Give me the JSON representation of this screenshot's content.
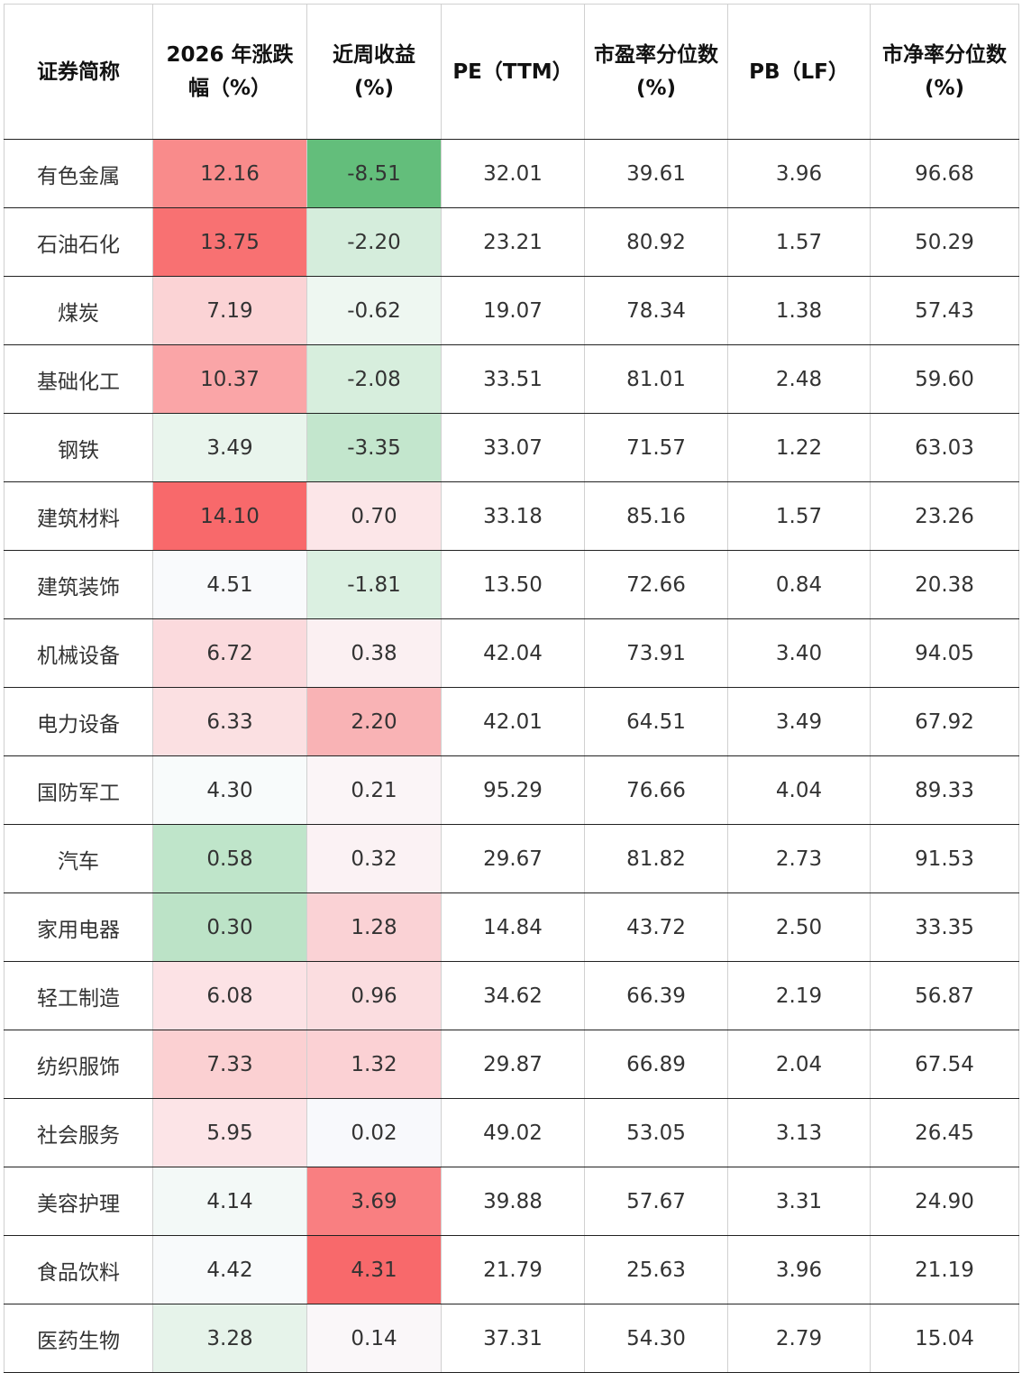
{
  "headers": {
    "name": "证券简称",
    "ytd_line1": "2026 年涨跌",
    "ytd_line2": "幅（%）",
    "week_line1": "近周收益",
    "week_line2": "(%)",
    "pe": "PE（TTM）",
    "pe_pct_line1": "市盈率分位数",
    "pe_pct_line2": "(%)",
    "pb": "PB（LF）",
    "pb_pct_line1": "市净率分位数",
    "pb_pct_line2": "(%)"
  },
  "rows": [
    {
      "name": "有色金属",
      "ytd": "12.16",
      "week": "-8.51",
      "pe": "32.01",
      "pe_pct": "39.61",
      "pb": "3.96",
      "pb_pct": "96.68",
      "ytd_color": "#f98b8b",
      "week_color": "#63be7b"
    },
    {
      "name": "石油石化",
      "ytd": "13.75",
      "week": "-2.20",
      "pe": "23.21",
      "pe_pct": "80.92",
      "pb": "1.57",
      "pb_pct": "50.29",
      "ytd_color": "#f87172",
      "week_color": "#d5eddc"
    },
    {
      "name": "煤炭",
      "ytd": "7.19",
      "week": "-0.62",
      "pe": "19.07",
      "pe_pct": "78.34",
      "pb": "1.38",
      "pb_pct": "57.43",
      "ytd_color": "#fbd3d5",
      "week_color": "#eef7f1"
    },
    {
      "name": "基础化工",
      "ytd": "10.37",
      "week": "-2.08",
      "pe": "33.51",
      "pe_pct": "81.01",
      "pb": "2.48",
      "pb_pct": "59.60",
      "ytd_color": "#faa5a7",
      "week_color": "#d7eedd"
    },
    {
      "name": "钢铁",
      "ytd": "3.49",
      "week": "-3.35",
      "pe": "33.07",
      "pe_pct": "71.57",
      "pb": "1.22",
      "pb_pct": "63.03",
      "ytd_color": "#e9f5ed",
      "week_color": "#c3e6cd"
    },
    {
      "name": "建筑材料",
      "ytd": "14.10",
      "week": "0.70",
      "pe": "33.18",
      "pe_pct": "85.16",
      "pb": "1.57",
      "pb_pct": "23.26",
      "ytd_color": "#f8696b",
      "week_color": "#fce6e8"
    },
    {
      "name": "建筑装饰",
      "ytd": "4.51",
      "week": "-1.81",
      "pe": "13.50",
      "pe_pct": "72.66",
      "pb": "0.84",
      "pb_pct": "20.38",
      "ytd_color": "#f9fafc",
      "week_color": "#dbf0e1"
    },
    {
      "name": "机械设备",
      "ytd": "6.72",
      "week": "0.38",
      "pe": "42.04",
      "pe_pct": "73.91",
      "pb": "3.40",
      "pb_pct": "94.05",
      "ytd_color": "#fbdadd",
      "week_color": "#fbf0f2"
    },
    {
      "name": "电力设备",
      "ytd": "6.33",
      "week": "2.20",
      "pe": "42.01",
      "pe_pct": "64.51",
      "pb": "3.49",
      "pb_pct": "67.92",
      "ytd_color": "#fbe0e2",
      "week_color": "#f9b3b5"
    },
    {
      "name": "国防军工",
      "ytd": "4.30",
      "week": "0.21",
      "pe": "95.29",
      "pe_pct": "76.66",
      "pb": "4.04",
      "pb_pct": "89.33",
      "ytd_color": "#f8fbfb",
      "week_color": "#fbf5f7"
    },
    {
      "name": "汽车",
      "ytd": "0.58",
      "week": "0.32",
      "pe": "29.67",
      "pe_pct": "81.82",
      "pb": "2.73",
      "pb_pct": "91.53",
      "ytd_color": "#bfe5ca",
      "week_color": "#fbf2f4"
    },
    {
      "name": "家用电器",
      "ytd": "0.30",
      "week": "1.28",
      "pe": "14.84",
      "pe_pct": "43.72",
      "pb": "2.50",
      "pb_pct": "33.35",
      "ytd_color": "#bce3c7",
      "week_color": "#fad2d5"
    },
    {
      "name": "轻工制造",
      "ytd": "6.08",
      "week": "0.96",
      "pe": "34.62",
      "pe_pct": "66.39",
      "pb": "2.19",
      "pb_pct": "56.87",
      "ytd_color": "#fce2e5",
      "week_color": "#fbdde0"
    },
    {
      "name": "纺织服饰",
      "ytd": "7.33",
      "week": "1.32",
      "pe": "29.87",
      "pe_pct": "66.89",
      "pb": "2.04",
      "pb_pct": "67.54",
      "ytd_color": "#fbd0d2",
      "week_color": "#fbd1d4"
    },
    {
      "name": "社会服务",
      "ytd": "5.95",
      "week": "0.02",
      "pe": "49.02",
      "pe_pct": "53.05",
      "pb": "3.13",
      "pb_pct": "26.45",
      "ytd_color": "#fce4e7",
      "week_color": "#f8f9fc"
    },
    {
      "name": "美容护理",
      "ytd": "4.14",
      "week": "3.69",
      "pe": "39.88",
      "pe_pct": "57.67",
      "pb": "3.31",
      "pb_pct": "24.90",
      "ytd_color": "#f3f9f7",
      "week_color": "#f97f81"
    },
    {
      "name": "食品饮料",
      "ytd": "4.42",
      "week": "4.31",
      "pe": "21.79",
      "pe_pct": "25.63",
      "pb": "3.96",
      "pb_pct": "21.19",
      "ytd_color": "#f8fafb",
      "week_color": "#f8696b"
    },
    {
      "name": "医药生物",
      "ytd": "3.28",
      "week": "0.14",
      "pe": "37.31",
      "pe_pct": "54.30",
      "pb": "2.79",
      "pb_pct": "15.04",
      "ytd_color": "#e6f3ea",
      "week_color": "#faf7f9"
    }
  ]
}
